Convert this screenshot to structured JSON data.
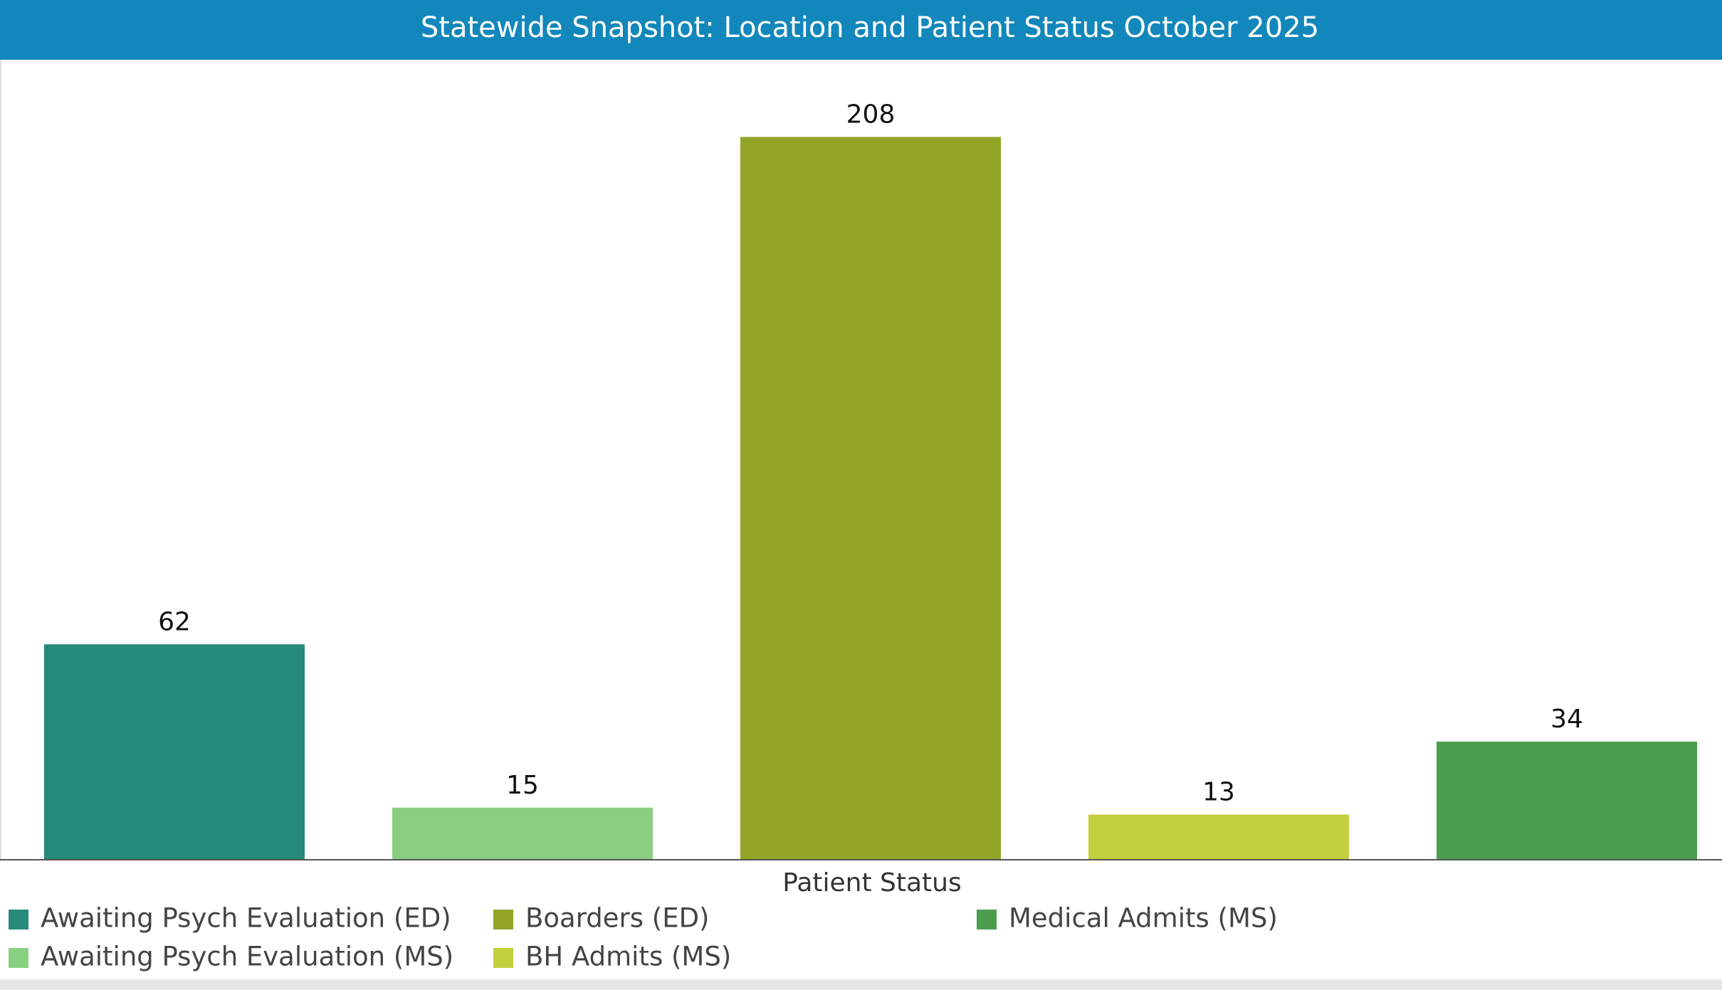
{
  "chart_data": {
    "type": "bar",
    "title": "Statewide Snapshot: Location and Patient Status October 2025",
    "x_label": "Patient Status",
    "categories": [
      null
    ],
    "series": [
      {
        "name": "Awaiting Psych Evaluation (ED)",
        "color": "#268a7a",
        "values": [
          62
        ]
      },
      {
        "name": "Awaiting Psych Evaluation (MS)",
        "color": "#88d080",
        "values": [
          15
        ]
      },
      {
        "name": "Boarders (ED)",
        "color": "#93a526",
        "values": [
          208
        ]
      },
      {
        "name": "BH Admits (MS)",
        "color": "#c3cf3d",
        "values": [
          13
        ]
      },
      {
        "name": "Medical Admits (MS)",
        "color": "#4c9e4e",
        "values": [
          34
        ]
      }
    ],
    "ylim": [
      0,
      230
    ],
    "legend": "bottom"
  }
}
